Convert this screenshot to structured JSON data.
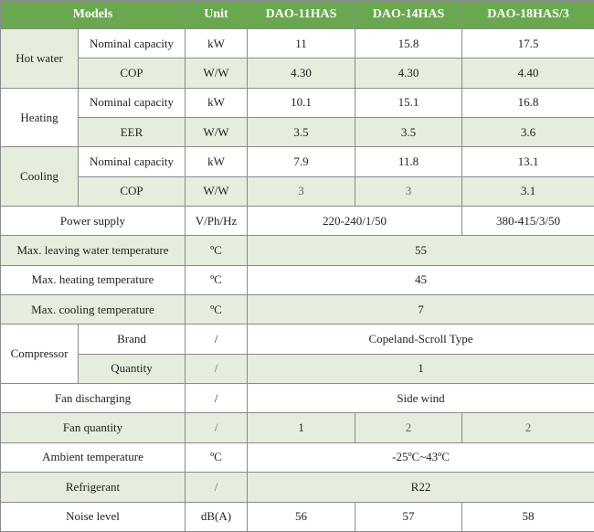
{
  "header": {
    "models": "Models",
    "unit": "Unit",
    "model_1": "DAO-11HAS",
    "model_2": "DAO-14HAS",
    "model_3": "DAO-18HAS/3"
  },
  "hot_water": {
    "group": "Hot water",
    "capacity": {
      "label": "Nominal capacity",
      "unit": "kW",
      "values": [
        "11",
        "15.8",
        "17.5"
      ]
    },
    "cop": {
      "label": "COP",
      "unit": "W/W",
      "values": [
        "4.30",
        "4.30",
        "4.40"
      ]
    }
  },
  "heating": {
    "group": "Heating",
    "capacity": {
      "label": "Nominal capacity",
      "unit": "kW",
      "values": [
        "10.1",
        "15.1",
        "16.8"
      ]
    },
    "eer": {
      "label": "EER",
      "unit": "W/W",
      "values": [
        "3.5",
        "3.5",
        "3.6"
      ]
    }
  },
  "cooling": {
    "group": "Cooling",
    "capacity": {
      "label": "Nominal capacity",
      "unit": "kW",
      "values": [
        "7.9",
        "11.8",
        "13.1"
      ]
    },
    "cop": {
      "label": "COP",
      "unit": "W/W",
      "values": [
        "3",
        "3",
        "3.1"
      ]
    }
  },
  "power_supply": {
    "label": "Power supply",
    "unit": "V/Ph/Hz",
    "value_12": "220-240/1/50",
    "value_3": "380-415/3/50"
  },
  "max_leaving_water": {
    "label": "Max. leaving water temperature",
    "unit": "ºC",
    "value": "55"
  },
  "max_heating": {
    "label": "Max. heating temperature",
    "unit": "ºC",
    "value": "45"
  },
  "max_cooling": {
    "label": "Max. cooling temperature",
    "unit": "ºC",
    "value": "7"
  },
  "compressor": {
    "group": "Compressor",
    "brand": {
      "label": "Brand",
      "unit": "/",
      "value": "Copeland-Scroll Type"
    },
    "quantity": {
      "label": "Quantity",
      "unit": "/",
      "value": "1"
    }
  },
  "fan_discharging": {
    "label": "Fan discharging",
    "unit": "/",
    "value": "Side wind"
  },
  "fan_quantity": {
    "label": "Fan quantity",
    "unit": "/",
    "values": [
      "1",
      "2",
      "2"
    ]
  },
  "ambient_temperature": {
    "label": "Ambient temperature",
    "unit": "ºC",
    "value": "-25ºC~43ºC"
  },
  "refrigerant": {
    "label": "Refrigerant",
    "unit": "/",
    "value": "R22"
  },
  "noise_level": {
    "label": "Noise level",
    "unit": "dB(A)",
    "values": [
      "56",
      "57",
      "58"
    ]
  }
}
